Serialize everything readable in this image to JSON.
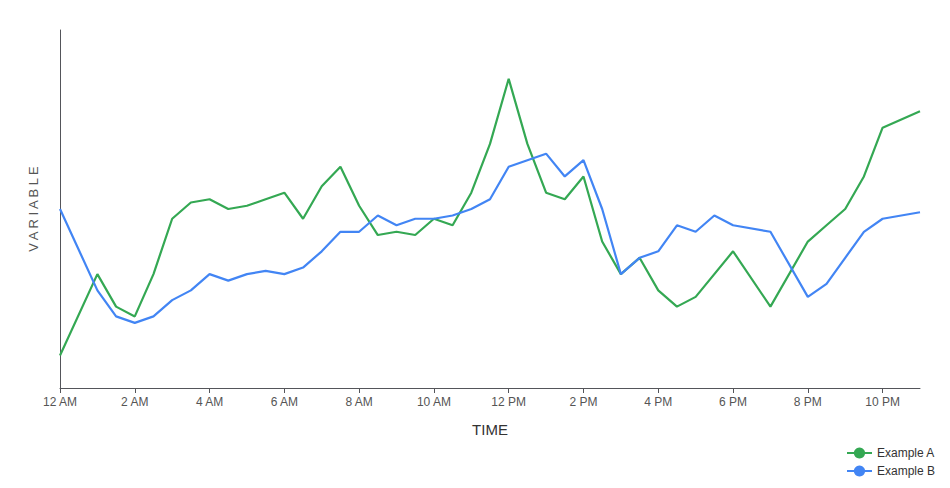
{
  "chart_data": {
    "type": "line",
    "xlabel": "TIME",
    "ylabel": "V A R I A B L E",
    "xlim": [
      0,
      23
    ],
    "xticks": [
      {
        "value": 0,
        "label": "12 AM"
      },
      {
        "value": 2,
        "label": "2 AM"
      },
      {
        "value": 4,
        "label": "4 AM"
      },
      {
        "value": 6,
        "label": "6 AM"
      },
      {
        "value": 8,
        "label": "8 AM"
      },
      {
        "value": 10,
        "label": "10 AM"
      },
      {
        "value": 12,
        "label": "12 PM"
      },
      {
        "value": 14,
        "label": "2 PM"
      },
      {
        "value": 16,
        "label": "4 PM"
      },
      {
        "value": 18,
        "label": "6 PM"
      },
      {
        "value": 20,
        "label": "8 PM"
      },
      {
        "value": 22,
        "label": "10 PM"
      }
    ],
    "ylim": [
      0,
      110
    ],
    "tick_labels": "x",
    "grid": false,
    "legend": "lower right",
    "series": [
      {
        "name": "Example A",
        "color": "#34a853",
        "x": [
          0,
          1,
          1.5,
          2,
          2.5,
          3,
          3.5,
          4,
          4.5,
          5,
          5.5,
          6,
          6.5,
          7,
          7.5,
          8,
          8.5,
          9,
          9.5,
          10,
          10.5,
          11,
          11.5,
          12,
          12.5,
          13,
          13.5,
          14,
          14.5,
          15,
          15.5,
          16,
          16.5,
          17,
          18,
          19,
          20,
          20.5,
          21,
          21.5,
          22,
          23
        ],
        "values": [
          10,
          35,
          25,
          22,
          35,
          52,
          57,
          58,
          55,
          56,
          58,
          60,
          52,
          62,
          68,
          56,
          47,
          48,
          47,
          52,
          50,
          60,
          75,
          95,
          75,
          60,
          58,
          65,
          45,
          35,
          40,
          30,
          25,
          28,
          42,
          25,
          45,
          50,
          55,
          65,
          80,
          85
        ]
      },
      {
        "name": "Example B",
        "color": "#4285f4",
        "x": [
          0,
          1,
          1.5,
          2,
          2.5,
          3,
          3.5,
          4,
          4.5,
          5,
          5.5,
          6,
          6.5,
          7,
          7.5,
          8,
          8.5,
          9,
          9.5,
          10,
          10.5,
          11,
          11.5,
          12,
          12.5,
          13,
          13.5,
          14,
          14.5,
          15,
          15.5,
          16,
          16.5,
          17,
          17.5,
          18,
          19,
          20,
          20.5,
          21,
          21.5,
          22,
          23
        ],
        "values": [
          55,
          30,
          22,
          20,
          22,
          27,
          30,
          35,
          33,
          35,
          36,
          35,
          37,
          42,
          48,
          48,
          53,
          50,
          52,
          52,
          53,
          55,
          58,
          68,
          70,
          72,
          65,
          70,
          55,
          35,
          40,
          42,
          50,
          48,
          53,
          50,
          48,
          28,
          32,
          40,
          48,
          52,
          54
        ]
      }
    ]
  }
}
